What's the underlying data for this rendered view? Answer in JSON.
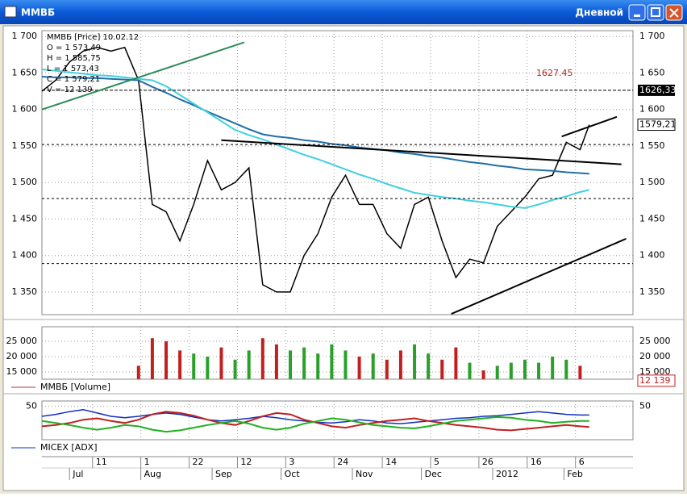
{
  "window": {
    "title": "ММВБ",
    "mode": "Дневной"
  },
  "chart_data": [
    {
      "type": "line",
      "info": [
        "ММВБ [Price] 10.02.12",
        "O = 1 573,49",
        "H = 1 585,75",
        "L = 1 573,43",
        "C = 1 579,21",
        "V = 12 139"
      ],
      "x": [
        0,
        6,
        12,
        18,
        24,
        30,
        36,
        42,
        48,
        54,
        60,
        66,
        72,
        78,
        84,
        90,
        96,
        102,
        108,
        114,
        120,
        126,
        132,
        138,
        144,
        150,
        156,
        162,
        168,
        174,
        180,
        186,
        192,
        198,
        204,
        210,
        216,
        222,
        228,
        234,
        238
      ],
      "xlim": [
        0,
        257
      ],
      "xticks": [
        {
          "value": 22,
          "label": "11"
        },
        {
          "value": 43,
          "label": "1"
        },
        {
          "value": 64,
          "label": "22"
        },
        {
          "value": 85,
          "label": "12"
        },
        {
          "value": 106,
          "label": "3"
        },
        {
          "value": 127,
          "label": "24"
        },
        {
          "value": 148,
          "label": "14"
        },
        {
          "value": 169,
          "label": "5"
        },
        {
          "value": 190,
          "label": "26"
        },
        {
          "value": 211,
          "label": "16"
        },
        {
          "value": 232,
          "label": "6"
        }
      ],
      "months": [
        {
          "value": 12,
          "label": "Jul"
        },
        {
          "value": 43,
          "label": "Aug"
        },
        {
          "value": 74,
          "label": "Sep"
        },
        {
          "value": 104,
          "label": "Oct"
        },
        {
          "value": 135,
          "label": "Nov"
        },
        {
          "value": 165,
          "label": "Dec"
        },
        {
          "value": 196,
          "label": "2012"
        },
        {
          "value": 227,
          "label": "Feb"
        }
      ],
      "ylim": [
        1319,
        1708
      ],
      "yticks": [
        {
          "value": 1350,
          "label": "1 350"
        },
        {
          "value": 1400,
          "label": "1 400"
        },
        {
          "value": 1450,
          "label": "1 450"
        },
        {
          "value": 1500,
          "label": "1 500"
        },
        {
          "value": 1550,
          "label": "1 550"
        },
        {
          "value": 1600,
          "label": "1 600"
        },
        {
          "value": 1650,
          "label": "1 650"
        },
        {
          "value": 1700,
          "label": "1 700"
        }
      ],
      "series": [
        {
          "color": "#000000",
          "values": [
            1625,
            1640,
            1665,
            1680,
            1685,
            1680,
            1685,
            1640,
            1470,
            1460,
            1420,
            1470,
            1530,
            1490,
            1500,
            1520,
            1360,
            1350,
            1350,
            1400,
            1430,
            1480,
            1510,
            1470,
            1470,
            1430,
            1410,
            1470,
            1480,
            1420,
            1370,
            1395,
            1390,
            1440,
            1460,
            1480,
            1505,
            1510,
            1555,
            1545,
            1579.21
          ]
        },
        {
          "color": "#1f6fa8",
          "values": [
            1645,
            1644,
            1644,
            1643,
            1643,
            1642,
            1641,
            1640,
            1631,
            1623,
            1614,
            1606,
            1597,
            1589,
            1581,
            1573,
            1566,
            1563,
            1561,
            1558,
            1556,
            1553,
            1551,
            1548,
            1546,
            1544,
            1541,
            1539,
            1536,
            1534,
            1531,
            1528,
            1526,
            1523,
            1521,
            1518,
            1517,
            1516,
            1514,
            1513,
            1512
          ]
        },
        {
          "color": "#40d0e0",
          "values": [
            1655,
            1653,
            1651,
            1649,
            1647,
            1646,
            1644,
            1642,
            1640,
            1632,
            1620,
            1608,
            1596,
            1584,
            1572,
            1565,
            1559,
            1552,
            1545,
            1538,
            1532,
            1525,
            1518,
            1511,
            1505,
            1498,
            1492,
            1486,
            1483,
            1480,
            1478,
            1475,
            1473,
            1470,
            1467,
            1465,
            1470,
            1476,
            1481,
            1487,
            1490
          ]
        }
      ],
      "levels": [
        1552,
        1478,
        1389
      ],
      "marked_level": {
        "value": 1626.33,
        "label": "1626,33"
      },
      "annotation": {
        "value": 1627.45,
        "label": "1627.45"
      },
      "current": {
        "value": 1579.21,
        "label": "1579,21"
      },
      "trendlines": [
        {
          "color": "#000000",
          "x": [
            178,
            254
          ],
          "y": [
            1320,
            1423
          ]
        },
        {
          "color": "#000000",
          "x": [
            78,
            252
          ],
          "y": [
            1558,
            1525
          ]
        },
        {
          "color": "#000000",
          "x": [
            226,
            250
          ],
          "y": [
            1563,
            1590
          ]
        },
        {
          "color": "#2e8b57",
          "x": [
            0,
            88
          ],
          "y": [
            1600,
            1692
          ]
        }
      ],
      "grid": true
    },
    {
      "type": "bar",
      "series": [
        {
          "name": "ММВБ [Volume]",
          "color": "#b03030",
          "values": [
            null,
            null,
            null,
            null,
            null,
            null,
            null,
            17000,
            26000,
            25000,
            22000,
            21000,
            20000,
            23000,
            19000,
            22000,
            26000,
            24000,
            22000,
            23000,
            21000,
            24000,
            22000,
            20000,
            21000,
            19000,
            22000,
            24000,
            21000,
            19000,
            23000,
            18000,
            15500,
            17000,
            18000,
            19000,
            18000,
            20000,
            19000,
            17000,
            12139
          ]
        }
      ],
      "up_color": "#2aa02a",
      "down_color": "#c02020",
      "ylim": [
        12632,
        29737
      ],
      "yticks": [
        {
          "value": 15000,
          "label": "15 000"
        },
        {
          "value": 20000,
          "label": "20 000"
        },
        {
          "value": 25000,
          "label": "25 000"
        }
      ],
      "current": {
        "value": 12139,
        "label": "12 139"
      },
      "grid": true
    },
    {
      "type": "line",
      "ylim": [
        0,
        58
      ],
      "yticks": [
        50
      ],
      "series": [
        {
          "name": "MICEX [ADX]",
          "color": "#1030c0",
          "values": [
            35,
            38,
            42,
            45,
            40,
            35,
            33,
            35,
            38,
            40,
            38,
            34,
            30,
            28,
            30,
            32,
            35,
            33,
            30,
            28,
            26,
            25,
            27,
            30,
            28,
            25,
            24,
            26,
            28,
            30,
            32,
            33,
            35,
            36,
            38,
            40,
            42,
            40,
            38,
            37,
            37
          ]
        },
        {
          "color": "#c02020",
          "values": [
            20,
            22,
            25,
            30,
            32,
            28,
            25,
            30,
            38,
            42,
            40,
            36,
            30,
            25,
            22,
            28,
            35,
            40,
            38,
            30,
            25,
            20,
            18,
            22,
            25,
            28,
            30,
            32,
            28,
            25,
            22,
            20,
            18,
            15,
            14,
            16,
            18,
            20,
            22,
            20,
            19
          ]
        },
        {
          "color": "#20b020",
          "values": [
            28,
            25,
            22,
            18,
            15,
            18,
            22,
            20,
            15,
            12,
            14,
            18,
            22,
            25,
            28,
            24,
            18,
            15,
            18,
            24,
            28,
            32,
            30,
            26,
            22,
            20,
            18,
            17,
            20,
            24,
            28,
            30,
            32,
            34,
            33,
            30,
            28,
            25,
            27,
            28,
            28
          ]
        }
      ],
      "grid": true
    }
  ]
}
